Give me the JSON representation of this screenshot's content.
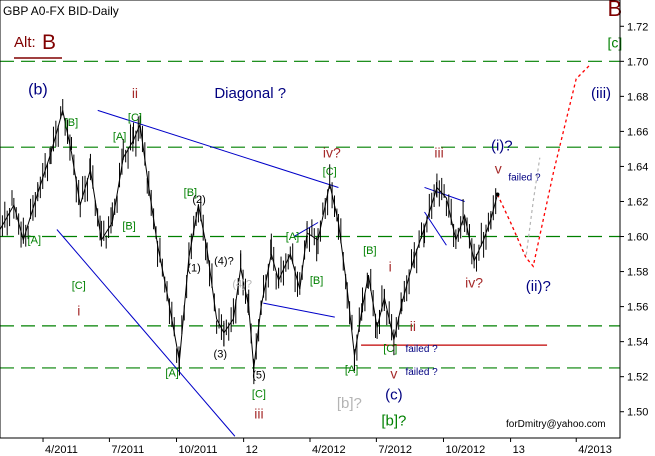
{
  "chart_data": {
    "type": "line",
    "title": "GBP A0-FX BID-Daily",
    "alt_label": "Alt:",
    "alt_wave": "B",
    "x_tick_labels": [
      "4/2011",
      "7/2011",
      "10/2011",
      "12",
      "4/2012",
      "7/2012",
      "10/2012",
      "13",
      "4/2013"
    ],
    "y_tick_labels": [
      "1.72",
      "1.70",
      "1.68",
      "1.66",
      "1.64",
      "1.62",
      "1.60",
      "1.58",
      "1.56",
      "1.54",
      "1.52",
      "1.50"
    ],
    "ylim": [
      1.485,
      1.735
    ],
    "x_range": [
      "2011-02-01",
      "2013-05-31"
    ],
    "grid": false,
    "watermark": "forDmitry@yahoo.com",
    "colors": {
      "candles": "#000000",
      "dashed_levels": "#008000",
      "channel": "#0000c8",
      "support": "#c00000",
      "projection": "#ff0000",
      "projection_alt": "#b4b4b4"
    },
    "horizontal_levels": [
      1.7,
      1.651,
      1.6,
      1.549,
      1.525
    ],
    "support_line": {
      "value": 1.538,
      "x_start": "2012-06-10",
      "x_end": "2013-02-20"
    },
    "price_series": {
      "name": "",
      "points": [
        {
          "x": "2011-02-01",
          "y": 1.604
        },
        {
          "x": "2011-02-20",
          "y": 1.618
        },
        {
          "x": "2011-03-05",
          "y": 1.598
        },
        {
          "x": "2011-03-25",
          "y": 1.625
        },
        {
          "x": "2011-04-12",
          "y": 1.648
        },
        {
          "x": "2011-04-28",
          "y": 1.672
        },
        {
          "x": "2011-05-10",
          "y": 1.648
        },
        {
          "x": "2011-05-22",
          "y": 1.618
        },
        {
          "x": "2011-06-05",
          "y": 1.638
        },
        {
          "x": "2011-06-20",
          "y": 1.598
        },
        {
          "x": "2011-07-05",
          "y": 1.608
        },
        {
          "x": "2011-07-20",
          "y": 1.645
        },
        {
          "x": "2011-08-03",
          "y": 1.655
        },
        {
          "x": "2011-08-12",
          "y": 1.664
        },
        {
          "x": "2011-08-24",
          "y": 1.628
        },
        {
          "x": "2011-09-05",
          "y": 1.595
        },
        {
          "x": "2011-09-18",
          "y": 1.568
        },
        {
          "x": "2011-10-05",
          "y": 1.529
        },
        {
          "x": "2011-10-18",
          "y": 1.588
        },
        {
          "x": "2011-10-31",
          "y": 1.618
        },
        {
          "x": "2011-11-12",
          "y": 1.592
        },
        {
          "x": "2011-11-25",
          "y": 1.553
        },
        {
          "x": "2011-12-05",
          "y": 1.545
        },
        {
          "x": "2011-12-18",
          "y": 1.553
        },
        {
          "x": "2011-12-28",
          "y": 1.582
        },
        {
          "x": "2012-01-08",
          "y": 1.56
        },
        {
          "x": "2012-01-15",
          "y": 1.525
        },
        {
          "x": "2012-01-25",
          "y": 1.56
        },
        {
          "x": "2012-02-08",
          "y": 1.59
        },
        {
          "x": "2012-02-18",
          "y": 1.575
        },
        {
          "x": "2012-03-05",
          "y": 1.59
        },
        {
          "x": "2012-03-18",
          "y": 1.57
        },
        {
          "x": "2012-03-28",
          "y": 1.602
        },
        {
          "x": "2012-04-12",
          "y": 1.598
        },
        {
          "x": "2012-04-28",
          "y": 1.63
        },
        {
          "x": "2012-05-10",
          "y": 1.608
        },
        {
          "x": "2012-05-22",
          "y": 1.57
        },
        {
          "x": "2012-06-01",
          "y": 1.532
        },
        {
          "x": "2012-06-12",
          "y": 1.56
        },
        {
          "x": "2012-06-20",
          "y": 1.578
        },
        {
          "x": "2012-07-02",
          "y": 1.548
        },
        {
          "x": "2012-07-12",
          "y": 1.565
        },
        {
          "x": "2012-07-25",
          "y": 1.541
        },
        {
          "x": "2012-08-05",
          "y": 1.562
        },
        {
          "x": "2012-08-22",
          "y": 1.588
        },
        {
          "x": "2012-09-05",
          "y": 1.605
        },
        {
          "x": "2012-09-22",
          "y": 1.628
        },
        {
          "x": "2012-10-05",
          "y": 1.622
        },
        {
          "x": "2012-10-18",
          "y": 1.598
        },
        {
          "x": "2012-10-30",
          "y": 1.612
        },
        {
          "x": "2012-11-12",
          "y": 1.586
        },
        {
          "x": "2012-11-25",
          "y": 1.598
        },
        {
          "x": "2012-12-05",
          "y": 1.61
        },
        {
          "x": "2012-12-14",
          "y": 1.624
        }
      ]
    },
    "projection_main": [
      {
        "x": "2012-12-14",
        "y": 1.624
      },
      {
        "x": "2013-01-01",
        "y": 1.608
      },
      {
        "x": "2013-01-22",
        "y": 1.588
      },
      {
        "x": "2013-02-01",
        "y": 1.583
      },
      {
        "x": "2013-03-01",
        "y": 1.637
      },
      {
        "x": "2013-04-01",
        "y": 1.69
      },
      {
        "x": "2013-04-20",
        "y": 1.698
      }
    ],
    "projection_alt": [
      {
        "x": "2012-12-14",
        "y": 1.624
      },
      {
        "x": "2013-01-01",
        "y": 1.608
      },
      {
        "x": "2013-01-22",
        "y": 1.588
      },
      {
        "x": "2013-02-01",
        "y": 1.62
      },
      {
        "x": "2013-02-10",
        "y": 1.645
      }
    ],
    "trend_lines": [
      {
        "from": {
          "x": "2011-06-15",
          "y": 1.672
        },
        "to": {
          "x": "2012-05-10",
          "y": 1.628
        }
      },
      {
        "from": {
          "x": "2011-04-20",
          "y": 1.604
        },
        "to": {
          "x": "2011-12-20",
          "y": 1.486
        }
      },
      {
        "from": {
          "x": "2012-03-10",
          "y": 1.6
        },
        "to": {
          "x": "2012-04-12",
          "y": 1.608
        }
      },
      {
        "from": {
          "x": "2012-01-28",
          "y": 1.562
        },
        "to": {
          "x": "2012-05-05",
          "y": 1.554
        }
      },
      {
        "from": {
          "x": "2012-09-05",
          "y": 1.628
        },
        "to": {
          "x": "2012-10-30",
          "y": 1.62
        }
      },
      {
        "from": {
          "x": "2012-09-05",
          "y": 1.614
        },
        "to": {
          "x": "2012-10-05",
          "y": 1.595
        }
      }
    ],
    "annotations": [
      {
        "text": "(b)",
        "x": "2011-03-25",
        "y": 1.681,
        "color": "#000080",
        "size": 16
      },
      {
        "text": "ii",
        "x": "2011-08-05",
        "y": 1.679,
        "color": "#a52a2a",
        "size": 14
      },
      {
        "text": "[C]",
        "x": "2011-08-05",
        "y": 1.666,
        "color": "#008000",
        "size": 11
      },
      {
        "text": "[B]",
        "x": "2011-05-10",
        "y": 1.663,
        "color": "#008000",
        "size": 11
      },
      {
        "text": "[A]",
        "x": "2011-07-15",
        "y": 1.655,
        "color": "#008000",
        "size": 11
      },
      {
        "text": "Diagonal ?",
        "x": "2012-01-10",
        "y": 1.679,
        "color": "#000080",
        "size": 15
      },
      {
        "text": "iv?",
        "x": "2012-05-01",
        "y": 1.645,
        "color": "#a52a2a",
        "size": 14
      },
      {
        "text": "[C]",
        "x": "2012-04-28",
        "y": 1.635,
        "color": "#008000",
        "size": 11
      },
      {
        "text": "[B]",
        "x": "2011-10-20",
        "y": 1.623,
        "color": "#008000",
        "size": 11
      },
      {
        "text": "(2)",
        "x": "2011-11-01",
        "y": 1.619,
        "color": "#000000",
        "size": 11
      },
      {
        "text": "[B]",
        "x": "2011-07-28",
        "y": 1.604,
        "color": "#008000",
        "size": 11
      },
      {
        "text": "[A]",
        "x": "2011-03-20",
        "y": 1.596,
        "color": "#008000",
        "size": 11
      },
      {
        "text": "[A]",
        "x": "2012-03-08",
        "y": 1.598,
        "color": "#008000",
        "size": 11
      },
      {
        "text": "(4)?",
        "x": "2011-12-05",
        "y": 1.584,
        "color": "#000000",
        "size": 11
      },
      {
        "text": "(4)?",
        "x": "2011-12-30",
        "y": 1.571,
        "color": "#b4b4b4",
        "size": 11
      },
      {
        "text": "(1)",
        "x": "2011-10-25",
        "y": 1.58,
        "color": "#000000",
        "size": 11
      },
      {
        "text": "[B]",
        "x": "2012-04-10",
        "y": 1.573,
        "color": "#008000",
        "size": 11
      },
      {
        "text": "[C]",
        "x": "2011-05-20",
        "y": 1.57,
        "color": "#008000",
        "size": 11
      },
      {
        "text": "i",
        "x": "2011-05-20",
        "y": 1.555,
        "color": "#a52a2a",
        "size": 14
      },
      {
        "text": "(3)",
        "x": "2011-11-30",
        "y": 1.531,
        "color": "#000000",
        "size": 11
      },
      {
        "text": "[A]",
        "x": "2011-09-25",
        "y": 1.52,
        "color": "#008000",
        "size": 11
      },
      {
        "text": "(5)",
        "x": "2012-01-22",
        "y": 1.519,
        "color": "#000000",
        "size": 11
      },
      {
        "text": "[C]",
        "x": "2012-01-22",
        "y": 1.508,
        "color": "#008000",
        "size": 11
      },
      {
        "text": "iii",
        "x": "2012-01-22",
        "y": 1.496,
        "color": "#a52a2a",
        "size": 14
      },
      {
        "text": "[B]",
        "x": "2012-06-22",
        "y": 1.59,
        "color": "#008000",
        "size": 11
      },
      {
        "text": "i",
        "x": "2012-07-20",
        "y": 1.58,
        "color": "#a52a2a",
        "size": 14
      },
      {
        "text": "ii",
        "x": "2012-08-20",
        "y": 1.546,
        "color": "#a52a2a",
        "size": 14
      },
      {
        "text": "[C]",
        "x": "2012-07-20",
        "y": 1.534,
        "color": "#008000",
        "size": 11
      },
      {
        "text": "failed ?",
        "x": "2012-09-01",
        "y": 1.534,
        "color": "#000080",
        "size": 10
      },
      {
        "text": "failed ?",
        "x": "2012-09-01",
        "y": 1.521,
        "color": "#000080",
        "size": 10
      },
      {
        "text": "[A]",
        "x": "2012-05-28",
        "y": 1.522,
        "color": "#008000",
        "size": 11
      },
      {
        "text": "v",
        "x": "2012-07-25",
        "y": 1.519,
        "color": "#a52a2a",
        "size": 14
      },
      {
        "text": "(c)",
        "x": "2012-07-25",
        "y": 1.507,
        "color": "#000080",
        "size": 15
      },
      {
        "text": "[b]?",
        "x": "2012-05-25",
        "y": 1.502,
        "color": "#b4b4b4",
        "size": 15
      },
      {
        "text": "[b]?",
        "x": "2012-07-25",
        "y": 1.492,
        "color": "#008000",
        "size": 15
      },
      {
        "text": "iii",
        "x": "2012-09-25",
        "y": 1.645,
        "color": "#a52a2a",
        "size": 14
      },
      {
        "text": "(i)?",
        "x": "2012-12-20",
        "y": 1.649,
        "color": "#000080",
        "size": 15
      },
      {
        "text": "v",
        "x": "2012-12-15",
        "y": 1.636,
        "color": "#a52a2a",
        "size": 14
      },
      {
        "text": "failed ?",
        "x": "2013-01-20",
        "y": 1.632,
        "color": "#000080",
        "size": 10
      },
      {
        "text": "iv?",
        "x": "2012-11-12",
        "y": 1.571,
        "color": "#a52a2a",
        "size": 14
      },
      {
        "text": "(ii)?",
        "x": "2013-02-08",
        "y": 1.569,
        "color": "#000080",
        "size": 15
      },
      {
        "text": "(iii)",
        "x": "2013-05-05",
        "y": 1.679,
        "color": "#000080",
        "size": 15
      },
      {
        "text": "B",
        "x": "2013-05-24",
        "y": 1.726,
        "color": "#800000",
        "size": 22
      },
      {
        "text": "[c]",
        "x": "2013-05-24",
        "y": 1.708,
        "color": "#008000",
        "size": 14
      }
    ]
  }
}
